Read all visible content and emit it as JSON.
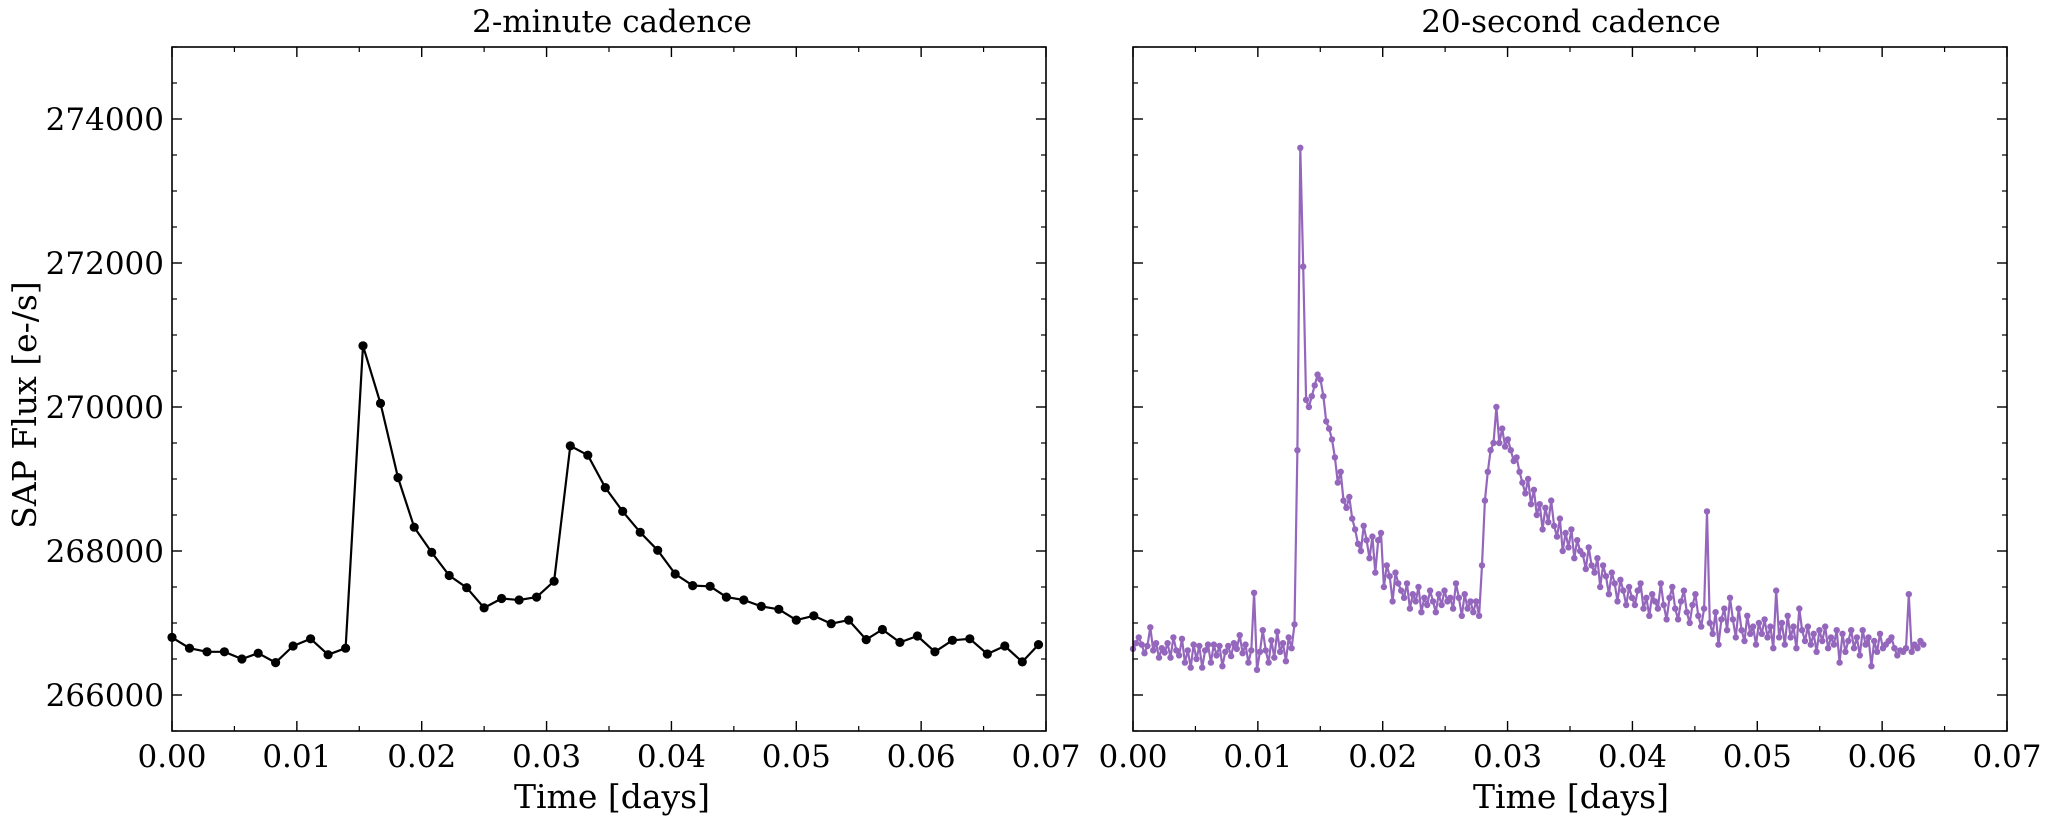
{
  "chart_data": [
    {
      "type": "line",
      "title": "2-minute cadence",
      "xlabel": "Time [days]",
      "ylabel": "SAP Flux [e-/s]",
      "xlim": [
        0.0,
        0.07
      ],
      "ylim": [
        265500,
        275000
      ],
      "xticks": [
        "0.00",
        "0.01",
        "0.02",
        "0.03",
        "0.04",
        "0.05",
        "0.06",
        "0.07"
      ],
      "yticks": [
        "266000",
        "268000",
        "270000",
        "272000",
        "274000"
      ],
      "grid": false,
      "series": [
        {
          "color": "#000000",
          "marker": "circle",
          "x": [
            0.0,
            0.0014,
            0.0028,
            0.0042,
            0.0056,
            0.0069,
            0.0083,
            0.0097,
            0.0111,
            0.0125,
            0.0139,
            0.0153,
            0.0167,
            0.0181,
            0.0194,
            0.0208,
            0.0222,
            0.0236,
            0.025,
            0.0264,
            0.0278,
            0.0292,
            0.0306,
            0.0319,
            0.0333,
            0.0347,
            0.0361,
            0.0375,
            0.0389,
            0.0403,
            0.0417,
            0.0431,
            0.0444,
            0.0458,
            0.0472,
            0.0486,
            0.05,
            0.0514,
            0.0528,
            0.0542,
            0.0556,
            0.0569,
            0.0583,
            0.0597,
            0.0611,
            0.0625,
            0.0639,
            0.0653,
            0.0667,
            0.0681,
            0.0694
          ],
          "y": [
            266800,
            266650,
            266600,
            266600,
            266500,
            266580,
            266450,
            266680,
            266780,
            266560,
            266650,
            270850,
            270050,
            269020,
            268330,
            267980,
            267660,
            267490,
            267210,
            267340,
            267320,
            267360,
            267580,
            269460,
            269330,
            268880,
            268550,
            268260,
            268010,
            267680,
            267520,
            267510,
            267360,
            267320,
            267230,
            267190,
            267040,
            267100,
            266990,
            267040,
            266770,
            266910,
            266730,
            266820,
            266600,
            266760,
            266780,
            266570,
            266680,
            266460,
            266700
          ]
        }
      ]
    },
    {
      "type": "line",
      "title": "20-second cadence",
      "xlabel": "Time [days]",
      "xlim": [
        0.0,
        0.07
      ],
      "ylim": [
        265500,
        275000
      ],
      "xticks": [
        "0.00",
        "0.01",
        "0.02",
        "0.03",
        "0.04",
        "0.05",
        "0.06",
        "0.07"
      ],
      "grid": false,
      "series": [
        {
          "color": "#9467bd",
          "marker": "circle",
          "x_start": 0.0,
          "x_step": 0.000231,
          "y": [
            266640,
            266720,
            266800,
            266700,
            266580,
            266680,
            266940,
            266620,
            266720,
            266520,
            266650,
            266590,
            266720,
            266520,
            266800,
            266620,
            266550,
            266780,
            266450,
            266620,
            266380,
            266700,
            266500,
            266680,
            266380,
            266620,
            266700,
            266450,
            266700,
            266550,
            266680,
            266400,
            266600,
            266680,
            266540,
            266720,
            266640,
            266830,
            266580,
            266700,
            266450,
            266620,
            267420,
            266350,
            266600,
            266900,
            266620,
            266450,
            266760,
            266520,
            266880,
            266600,
            266720,
            266470,
            266800,
            266650,
            266980,
            269400,
            273600,
            271950,
            270100,
            270000,
            270150,
            270300,
            270450,
            270380,
            270150,
            269800,
            269700,
            269550,
            269300,
            268950,
            269100,
            268700,
            268600,
            268750,
            268450,
            268300,
            268100,
            268000,
            268350,
            268150,
            267900,
            268200,
            267700,
            268150,
            268250,
            267500,
            267800,
            267650,
            267300,
            267700,
            267550,
            267450,
            267350,
            267550,
            267200,
            267400,
            267300,
            267500,
            267150,
            267350,
            267250,
            267450,
            267300,
            267150,
            267400,
            267250,
            267450,
            267300,
            267350,
            267200,
            267550,
            267350,
            267100,
            267400,
            267200,
            267300,
            267150,
            267300,
            267100,
            267800,
            268700,
            269100,
            269400,
            269500,
            270000,
            269500,
            269700,
            269450,
            269550,
            269400,
            269250,
            269300,
            269100,
            268950,
            268800,
            269000,
            268650,
            268850,
            268500,
            268650,
            268300,
            268600,
            268400,
            268700,
            268350,
            268200,
            268450,
            268000,
            268250,
            268050,
            268300,
            267900,
            268150,
            268000,
            267950,
            267750,
            268050,
            267800,
            267700,
            267900,
            267500,
            267800,
            267650,
            267400,
            267700,
            267550,
            267300,
            267600,
            267450,
            267250,
            267500,
            267350,
            267250,
            267450,
            267550,
            267200,
            267350,
            267100,
            267400,
            267300,
            267200,
            267550,
            267250,
            267050,
            267350,
            267500,
            267200,
            267050,
            267300,
            267450,
            267150,
            267000,
            267250,
            267400,
            267100,
            266950,
            267200,
            268550,
            267000,
            266850,
            267150,
            266700,
            267050,
            267200,
            266900,
            267350,
            267050,
            266800,
            267200,
            266900,
            266750,
            267100,
            266850,
            266950,
            266700,
            267000,
            266850,
            267050,
            266800,
            266950,
            266650,
            267450,
            266800,
            267000,
            266700,
            267100,
            266800,
            266950,
            266650,
            267200,
            266900,
            266750,
            266950,
            266700,
            266850,
            266600,
            266900,
            266750,
            266950,
            266650,
            266800,
            266700,
            266900,
            266450,
            266850,
            266600,
            266750,
            266900,
            266650,
            266800,
            266550,
            266900,
            266700,
            266800,
            266400,
            266750,
            266600,
            266850,
            266650,
            266700,
            266750,
            266800,
            266650,
            266550,
            266620,
            266600,
            266650,
            267400,
            266600,
            266700,
            266650,
            266750,
            266700
          ]
        }
      ]
    }
  ]
}
